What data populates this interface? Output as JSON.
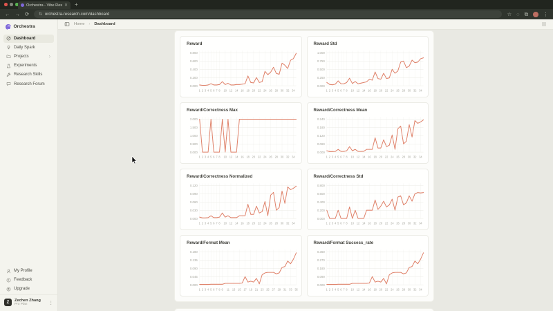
{
  "browser": {
    "tab_title": "Orchestra - Vibe Research C",
    "url": "orchestra-research.com/dashboard"
  },
  "colors": {
    "accent": "#7f68da",
    "chart_line": "#df8169",
    "traffic_close": "#df544e",
    "traffic_minimize": "#84867d",
    "traffic_maximize": "#57b150"
  },
  "sidebar": {
    "brand": "Orchestra",
    "items": [
      {
        "label": "Dashboard",
        "icon": "dashboard",
        "active": true
      },
      {
        "label": "Daily Spark",
        "icon": "spark"
      },
      {
        "label": "Projects",
        "icon": "folder",
        "chevron": true
      },
      {
        "label": "Experiments",
        "icon": "flask"
      },
      {
        "label": "Research Skills",
        "icon": "wrench"
      },
      {
        "label": "Research Forum",
        "icon": "chat"
      }
    ],
    "footer_items": [
      {
        "label": "My Profile",
        "icon": "person"
      },
      {
        "label": "Feedback",
        "icon": "feedback"
      },
      {
        "label": "Upgrade",
        "icon": "upgrade"
      }
    ],
    "user": {
      "initial": "Z",
      "name": "Zechen Zhang",
      "plan": "Pro Plan"
    }
  },
  "header": {
    "breadcrumb": {
      "home": "Home",
      "separator": "›",
      "current": "Dashboard"
    }
  },
  "chart_data": [
    {
      "type": "line",
      "title": "Reward",
      "yticks": [
        "0.000",
        "0.200",
        "0.400",
        "0.600",
        "0.800"
      ],
      "xticks": [
        "1",
        "2",
        "3",
        "4",
        "5",
        "6",
        "7",
        "8",
        "10",
        "12",
        "14",
        "16",
        "18",
        "20",
        "22",
        "24",
        "26",
        "28",
        "30",
        "32",
        "34"
      ],
      "x_range": [
        1,
        35
      ],
      "grid": true,
      "legend": false,
      "values": [
        0.02,
        0.01,
        0.01,
        0.02,
        0.05,
        0.02,
        0.02,
        0.03,
        0.1,
        0.03,
        0.06,
        0.02,
        0.02,
        0.03,
        0.03,
        0.04,
        0.05,
        0.24,
        0.08,
        0.07,
        0.2,
        0.08,
        0.1,
        0.35,
        0.27,
        0.33,
        0.45,
        0.3,
        0.28,
        0.55,
        0.5,
        0.42,
        0.62,
        0.66,
        0.79
      ]
    },
    {
      "type": "line",
      "title": "Reward Std",
      "yticks": [
        "0.000",
        "0.250",
        "0.500",
        "0.750",
        "1.000"
      ],
      "xticks": [
        "1",
        "2",
        "3",
        "4",
        "5",
        "6",
        "7",
        "8",
        "10",
        "12",
        "14",
        "16",
        "18",
        "20",
        "22",
        "24",
        "26",
        "28",
        "30",
        "32",
        "34"
      ],
      "x_range": [
        1,
        35
      ],
      "grid": true,
      "legend": false,
      "values": [
        0.1,
        0.04,
        0.03,
        0.05,
        0.15,
        0.06,
        0.06,
        0.1,
        0.23,
        0.07,
        0.13,
        0.06,
        0.08,
        0.1,
        0.12,
        0.2,
        0.17,
        0.42,
        0.22,
        0.2,
        0.38,
        0.22,
        0.24,
        0.5,
        0.38,
        0.45,
        0.72,
        0.75,
        0.55,
        0.6,
        0.78,
        0.7,
        0.72,
        0.82,
        0.85
      ]
    },
    {
      "type": "line",
      "title": "Reward/Correctness Max",
      "yticks": [
        "0.000",
        "0.500",
        "1.000",
        "1.500",
        "2.000"
      ],
      "xticks": [
        "1",
        "2",
        "3",
        "4",
        "5",
        "6",
        "7",
        "8",
        "10",
        "12",
        "14",
        "16",
        "18",
        "20",
        "22",
        "24",
        "26",
        "28",
        "30",
        "32",
        "34"
      ],
      "x_range": [
        1,
        35
      ],
      "grid": true,
      "legend": false,
      "values": [
        2,
        0,
        0,
        0,
        2,
        0,
        0,
        0,
        2,
        0,
        2,
        0,
        0,
        0,
        2,
        2,
        2,
        2,
        2,
        2,
        2,
        2,
        2,
        2,
        2,
        2,
        2,
        2,
        2,
        2,
        2,
        2,
        2,
        2,
        2
      ]
    },
    {
      "type": "line",
      "title": "Reward/Correctness Mean",
      "yticks": [
        "0.000",
        "0.060",
        "0.120",
        "0.180",
        "0.240"
      ],
      "xticks": [
        "1",
        "2",
        "3",
        "4",
        "5",
        "6",
        "7",
        "8",
        "10",
        "12",
        "14",
        "16",
        "18",
        "20",
        "22",
        "24",
        "26",
        "28",
        "30",
        "32",
        "34"
      ],
      "x_range": [
        1,
        35
      ],
      "grid": true,
      "legend": false,
      "values": [
        0.01,
        0.004,
        0.004,
        0.005,
        0.02,
        0.005,
        0.005,
        0.01,
        0.04,
        0.01,
        0.02,
        0.005,
        0.005,
        0.006,
        0.02,
        0.02,
        0.02,
        0.105,
        0.03,
        0.03,
        0.09,
        0.04,
        0.05,
        0.125,
        0.02,
        0.17,
        0.19,
        0.06,
        0.08,
        0.2,
        0.11,
        0.23,
        0.21,
        0.22,
        0.235
      ]
    },
    {
      "type": "line",
      "title": "Reward/Correctness Normalized",
      "yticks": [
        "0.000",
        "0.030",
        "0.060",
        "0.090",
        "0.120"
      ],
      "xticks": [
        "1",
        "2",
        "3",
        "4",
        "5",
        "6",
        "7",
        "8",
        "10",
        "12",
        "14",
        "16",
        "18",
        "20",
        "22",
        "24",
        "26",
        "28",
        "30",
        "32",
        "34"
      ],
      "x_range": [
        1,
        35
      ],
      "grid": true,
      "legend": false,
      "values": [
        0.005,
        0.002,
        0.002,
        0.003,
        0.01,
        0.003,
        0.003,
        0.005,
        0.02,
        0.005,
        0.01,
        0.003,
        0.003,
        0.003,
        0.01,
        0.01,
        0.01,
        0.052,
        0.015,
        0.015,
        0.045,
        0.02,
        0.025,
        0.062,
        0.01,
        0.085,
        0.095,
        0.03,
        0.04,
        0.1,
        0.055,
        0.115,
        0.105,
        0.11,
        0.118
      ]
    },
    {
      "type": "line",
      "title": "Reward/Correctness Std",
      "yticks": [
        "0.000",
        "0.200",
        "0.400",
        "0.600",
        "0.800"
      ],
      "xticks": [
        "1",
        "2",
        "3",
        "4",
        "5",
        "6",
        "7",
        "8",
        "10",
        "12",
        "14",
        "16",
        "18",
        "20",
        "22",
        "24",
        "26",
        "28",
        "30",
        "32",
        "34"
      ],
      "x_range": [
        1,
        35
      ],
      "grid": true,
      "legend": false,
      "values": [
        0.2,
        0.0,
        0.0,
        0.0,
        0.2,
        0.0,
        0.0,
        0.0,
        0.28,
        0.0,
        0.2,
        0.0,
        0.0,
        0.0,
        0.2,
        0.2,
        0.2,
        0.45,
        0.22,
        0.3,
        0.42,
        0.28,
        0.33,
        0.47,
        0.2,
        0.52,
        0.55,
        0.33,
        0.38,
        0.55,
        0.42,
        0.6,
        0.63,
        0.62,
        0.63
      ]
    },
    {
      "type": "line",
      "title": "Reward/Format Mean",
      "yticks": [
        "0.000",
        "0.045",
        "0.090",
        "0.135",
        "0.180"
      ],
      "xticks": [
        "1",
        "2",
        "3",
        "4",
        "5",
        "6",
        "7",
        "8",
        "9",
        "11",
        "13",
        "15",
        "17",
        "19",
        "21",
        "23",
        "25",
        "27",
        "29",
        "31",
        "33",
        "35"
      ],
      "x_range": [
        1,
        35
      ],
      "grid": true,
      "legend": false,
      "values": [
        0.002,
        0.002,
        0.002,
        0.002,
        0.003,
        0.003,
        0.003,
        0.003,
        0.003,
        0.008,
        0.008,
        0.008,
        0.008,
        0.008,
        0.008,
        0.01,
        0.045,
        0.015,
        0.02,
        0.015,
        0.035,
        0.005,
        0.055,
        0.065,
        0.068,
        0.068,
        0.068,
        0.06,
        0.065,
        0.095,
        0.1,
        0.13,
        0.115,
        0.14,
        0.175
      ]
    },
    {
      "type": "line",
      "title": "Reward/Format Success_rate",
      "yticks": [
        "0.000",
        "0.090",
        "0.180",
        "0.270",
        "0.360"
      ],
      "xticks": [
        "1",
        "2",
        "3",
        "4",
        "5",
        "6",
        "7",
        "8",
        "10",
        "12",
        "14",
        "16",
        "18",
        "20",
        "22",
        "24",
        "26",
        "28",
        "30",
        "32",
        "34"
      ],
      "x_range": [
        1,
        35
      ],
      "grid": true,
      "legend": false,
      "values": [
        0.004,
        0.004,
        0.004,
        0.004,
        0.006,
        0.006,
        0.006,
        0.006,
        0.006,
        0.016,
        0.016,
        0.016,
        0.016,
        0.016,
        0.016,
        0.02,
        0.09,
        0.03,
        0.04,
        0.03,
        0.07,
        0.01,
        0.11,
        0.13,
        0.136,
        0.136,
        0.136,
        0.12,
        0.13,
        0.19,
        0.2,
        0.26,
        0.23,
        0.28,
        0.35
      ]
    }
  ]
}
